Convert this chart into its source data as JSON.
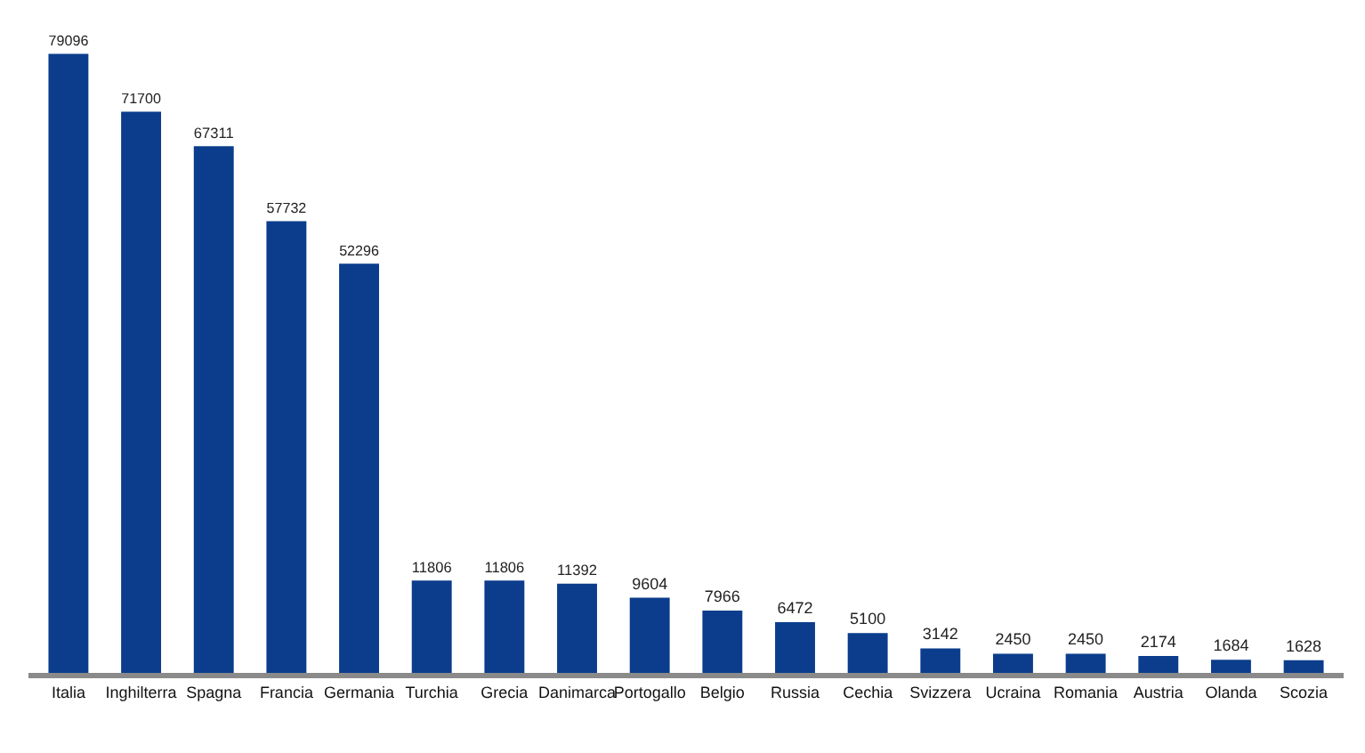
{
  "chart_data": {
    "type": "bar",
    "categories": [
      "Italia",
      "Inghilterra",
      "Spagna",
      "Francia",
      "Germania",
      "Turchia",
      "Grecia",
      "Danimarca",
      "Portogallo",
      "Belgio",
      "Russia",
      "Cechia",
      "Svizzera",
      "Ucraina",
      "Romania",
      "Austria",
      "Olanda",
      "Scozia"
    ],
    "values": [
      79096,
      71700,
      67311,
      57732,
      52296,
      11806,
      11806,
      11392,
      9604,
      7966,
      6472,
      5100,
      3142,
      2450,
      2450,
      2174,
      1684,
      1628
    ],
    "color": "#0b3d8c",
    "data_labels": true
  }
}
